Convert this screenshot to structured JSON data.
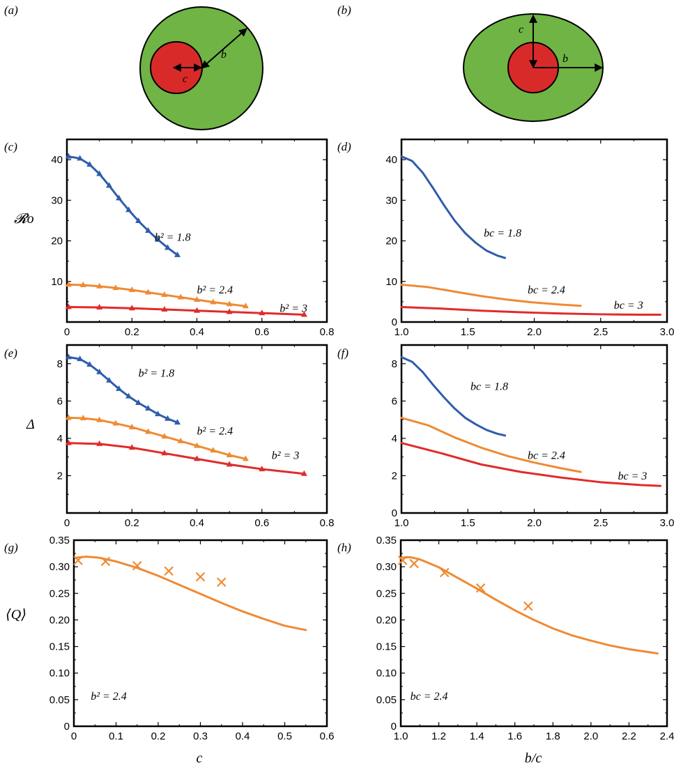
{
  "panels_top": [
    {
      "label": "(a)",
      "b": "b",
      "c": "c"
    },
    {
      "label": "(b)",
      "b": "b",
      "c": "c"
    }
  ],
  "colors": {
    "blue": "#2f5dab",
    "orange": "#ef8a33",
    "red": "#e02b2b",
    "green": "#6fb444",
    "core": "#d92a2a"
  },
  "chart_data": [
    {
      "id": "c",
      "type": "line",
      "panel_label": "(c)",
      "ylabel": "𝓡o",
      "xlabel": "",
      "xlim": [
        0,
        0.8
      ],
      "ylim": [
        0,
        45
      ],
      "xticks": [
        0,
        0.2,
        0.4,
        0.6,
        0.8
      ],
      "xtick_labels": [
        "0",
        "0.2",
        "0.4",
        "0.6",
        "0.8"
      ],
      "yticks": [
        10,
        20,
        30,
        40
      ],
      "ytick_labels": [
        "10",
        "20",
        "30",
        "40"
      ],
      "markers": "triangle",
      "series": [
        {
          "name": "b² = 1.8",
          "color": "#2f5dab",
          "label_at": [
            0.27,
            20
          ],
          "x": [
            0.005,
            0.04,
            0.07,
            0.1,
            0.13,
            0.16,
            0.19,
            0.22,
            0.25,
            0.28,
            0.31,
            0.34
          ],
          "y": [
            40.8,
            40.3,
            38.8,
            36.5,
            33.6,
            30.5,
            27.6,
            24.9,
            22.5,
            20.3,
            18.3,
            16.5
          ]
        },
        {
          "name": "b² = 2.4",
          "color": "#ef8a33",
          "label_at": [
            0.4,
            7
          ],
          "x": [
            0.005,
            0.05,
            0.1,
            0.15,
            0.2,
            0.25,
            0.3,
            0.35,
            0.4,
            0.45,
            0.5,
            0.55
          ],
          "y": [
            9.2,
            9.1,
            8.8,
            8.4,
            7.9,
            7.3,
            6.7,
            6.1,
            5.5,
            4.9,
            4.4,
            3.9
          ]
        },
        {
          "name": "b² = 3",
          "color": "#e02b2b",
          "label_at": [
            0.655,
            2.5
          ],
          "x": [
            0.005,
            0.1,
            0.2,
            0.3,
            0.4,
            0.5,
            0.6,
            0.73
          ],
          "y": [
            3.7,
            3.6,
            3.4,
            3.1,
            2.8,
            2.5,
            2.2,
            1.8
          ]
        }
      ]
    },
    {
      "id": "d",
      "type": "line",
      "panel_label": "(d)",
      "ylabel": "",
      "xlabel": "",
      "xlim": [
        1.0,
        3.0
      ],
      "ylim": [
        0,
        45
      ],
      "xticks": [
        1.0,
        1.5,
        2.0,
        2.5,
        3.0
      ],
      "xtick_labels": [
        "1.0",
        "1.5",
        "2.0",
        "2.5",
        "3.0"
      ],
      "yticks": [
        0,
        10,
        20,
        30,
        40
      ],
      "ytick_labels": [
        "0",
        "10",
        "20",
        "30",
        "40"
      ],
      "markers": "none",
      "series": [
        {
          "name": "bc = 1.8",
          "color": "#2f5dab",
          "label_at": [
            1.62,
            21
          ],
          "x": [
            1.0,
            1.08,
            1.16,
            1.24,
            1.32,
            1.4,
            1.48,
            1.56,
            1.64,
            1.72,
            1.78
          ],
          "y": [
            40.8,
            39.7,
            36.8,
            32.9,
            28.8,
            25.0,
            21.9,
            19.5,
            17.6,
            16.4,
            15.8
          ]
        },
        {
          "name": "bc = 2.4",
          "color": "#ef8a33",
          "label_at": [
            1.95,
            7
          ],
          "x": [
            1.0,
            1.2,
            1.4,
            1.6,
            1.8,
            2.0,
            2.2,
            2.35
          ],
          "y": [
            9.2,
            8.6,
            7.5,
            6.4,
            5.5,
            4.8,
            4.3,
            4.0
          ]
        },
        {
          "name": "bc = 3",
          "color": "#e02b2b",
          "label_at": [
            2.6,
            3.3
          ],
          "x": [
            1.0,
            1.3,
            1.6,
            1.9,
            2.2,
            2.5,
            2.8,
            2.95
          ],
          "y": [
            3.7,
            3.3,
            2.8,
            2.4,
            2.1,
            1.9,
            1.8,
            1.8
          ]
        }
      ]
    },
    {
      "id": "e",
      "type": "line",
      "panel_label": "(e)",
      "ylabel": "Δ",
      "xlabel": "",
      "xlim": [
        0,
        0.8
      ],
      "ylim": [
        0,
        9
      ],
      "xticks": [
        0,
        0.2,
        0.4,
        0.6,
        0.8
      ],
      "xtick_labels": [
        "0",
        "0.2",
        "0.4",
        "0.6",
        "0.8"
      ],
      "yticks": [
        2,
        4,
        6,
        8
      ],
      "ytick_labels": [
        "2",
        "4",
        "6",
        "8"
      ],
      "markers": "triangle",
      "series": [
        {
          "name": "b² = 1.8",
          "color": "#2f5dab",
          "label_at": [
            0.22,
            7.3
          ],
          "x": [
            0.005,
            0.04,
            0.07,
            0.1,
            0.13,
            0.16,
            0.19,
            0.22,
            0.25,
            0.28,
            0.31,
            0.34
          ],
          "y": [
            8.35,
            8.25,
            7.95,
            7.55,
            7.1,
            6.65,
            6.25,
            5.9,
            5.6,
            5.3,
            5.05,
            4.85
          ]
        },
        {
          "name": "b² = 2.4",
          "color": "#ef8a33",
          "label_at": [
            0.4,
            4.2
          ],
          "x": [
            0.005,
            0.05,
            0.1,
            0.15,
            0.2,
            0.25,
            0.3,
            0.35,
            0.4,
            0.45,
            0.5,
            0.55
          ],
          "y": [
            5.1,
            5.08,
            4.98,
            4.8,
            4.6,
            4.35,
            4.1,
            3.85,
            3.6,
            3.35,
            3.1,
            2.9
          ]
        },
        {
          "name": "b² = 3",
          "color": "#e02b2b",
          "label_at": [
            0.63,
            2.9
          ],
          "x": [
            0.005,
            0.1,
            0.2,
            0.3,
            0.4,
            0.5,
            0.6,
            0.73
          ],
          "y": [
            3.75,
            3.7,
            3.5,
            3.2,
            2.9,
            2.6,
            2.35,
            2.1
          ]
        }
      ]
    },
    {
      "id": "f",
      "type": "line",
      "panel_label": "(f)",
      "ylabel": "",
      "xlabel": "",
      "xlim": [
        1.0,
        3.0
      ],
      "ylim": [
        0,
        9
      ],
      "xticks": [
        1.0,
        1.5,
        2.0,
        2.5,
        3.0
      ],
      "xtick_labels": [
        "1.0",
        "1.5",
        "2.0",
        "2.5",
        "3.0"
      ],
      "yticks": [
        0,
        2,
        4,
        6,
        8
      ],
      "ytick_labels": [
        "0",
        "2",
        "4",
        "6",
        "8"
      ],
      "markers": "none",
      "series": [
        {
          "name": "bc = 1.8",
          "color": "#2f5dab",
          "label_at": [
            1.52,
            6.6
          ],
          "x": [
            1.0,
            1.08,
            1.16,
            1.24,
            1.32,
            1.4,
            1.48,
            1.56,
            1.64,
            1.72,
            1.78
          ],
          "y": [
            8.35,
            8.1,
            7.55,
            6.85,
            6.2,
            5.6,
            5.1,
            4.75,
            4.45,
            4.25,
            4.15
          ]
        },
        {
          "name": "bc = 2.4",
          "color": "#ef8a33",
          "label_at": [
            1.95,
            2.9
          ],
          "x": [
            1.0,
            1.2,
            1.4,
            1.6,
            1.8,
            2.0,
            2.2,
            2.35
          ],
          "y": [
            5.1,
            4.7,
            4.05,
            3.5,
            3.05,
            2.7,
            2.4,
            2.2
          ]
        },
        {
          "name": "bc = 3",
          "color": "#e02b2b",
          "label_at": [
            2.63,
            1.8
          ],
          "x": [
            1.0,
            1.3,
            1.6,
            1.9,
            2.2,
            2.5,
            2.8,
            2.95
          ],
          "y": [
            3.75,
            3.2,
            2.6,
            2.2,
            1.9,
            1.65,
            1.5,
            1.45
          ]
        }
      ]
    },
    {
      "id": "g",
      "type": "line",
      "panel_label": "(g)",
      "ylabel": "⟨Q⟩",
      "xlabel": "c",
      "xlim": [
        0,
        0.6
      ],
      "ylim": [
        0,
        0.35
      ],
      "xticks": [
        0,
        0.1,
        0.2,
        0.3,
        0.4,
        0.5,
        0.6
      ],
      "xtick_labels": [
        "0",
        "0.1",
        "0.2",
        "0.3",
        "0.4",
        "0.5",
        "0.6"
      ],
      "yticks": [
        0,
        0.05,
        0.1,
        0.15,
        0.2,
        0.25,
        0.3,
        0.35
      ],
      "ytick_labels": [
        "0",
        "0.05",
        "0.10",
        "0.15",
        "0.20",
        "0.25",
        "0.30",
        "0.35"
      ],
      "markers": "none",
      "note": "b² = 2.4",
      "note_at": [
        0.04,
        0.05
      ],
      "series": [
        {
          "name": "",
          "color": "#ef8a33",
          "x": [
            0.005,
            0.03,
            0.06,
            0.1,
            0.15,
            0.2,
            0.25,
            0.3,
            0.35,
            0.4,
            0.45,
            0.5,
            0.55
          ],
          "y": [
            0.317,
            0.319,
            0.317,
            0.31,
            0.298,
            0.283,
            0.266,
            0.249,
            0.232,
            0.216,
            0.202,
            0.189,
            0.181
          ]
        }
      ],
      "crosses": {
        "color": "#ef8a33",
        "x": [
          0.01,
          0.075,
          0.15,
          0.225,
          0.3,
          0.35
        ],
        "y": [
          0.312,
          0.31,
          0.302,
          0.292,
          0.281,
          0.271
        ]
      }
    },
    {
      "id": "h",
      "type": "line",
      "panel_label": "(h)",
      "ylabel": "",
      "xlabel": "b/c",
      "xlim": [
        1.0,
        2.4
      ],
      "ylim": [
        0,
        0.35
      ],
      "xticks": [
        1.0,
        1.2,
        1.4,
        1.6,
        1.8,
        2.0,
        2.2,
        2.4
      ],
      "xtick_labels": [
        "1.0",
        "1.2",
        "1.4",
        "1.6",
        "1.8",
        "2.0",
        "2.2",
        "2.4"
      ],
      "yticks": [
        0,
        0.05,
        0.1,
        0.15,
        0.2,
        0.25,
        0.3,
        0.35
      ],
      "ytick_labels": [
        "0",
        "0.05",
        "0.10",
        "0.15",
        "0.20",
        "0.25",
        "0.30",
        "0.35"
      ],
      "markers": "none",
      "note": "bc = 2.4",
      "note_at": [
        1.05,
        0.05
      ],
      "series": [
        {
          "name": "",
          "color": "#ef8a33",
          "x": [
            1.0,
            1.05,
            1.1,
            1.2,
            1.3,
            1.4,
            1.5,
            1.6,
            1.7,
            1.8,
            1.9,
            2.0,
            2.1,
            2.2,
            2.35
          ],
          "y": [
            0.317,
            0.318,
            0.314,
            0.299,
            0.279,
            0.259,
            0.238,
            0.218,
            0.2,
            0.184,
            0.171,
            0.161,
            0.152,
            0.145,
            0.137
          ]
        }
      ],
      "crosses": {
        "color": "#ef8a33",
        "x": [
          1.01,
          1.07,
          1.23,
          1.42,
          1.67
        ],
        "y": [
          0.312,
          0.306,
          0.289,
          0.26,
          0.226
        ]
      }
    }
  ]
}
